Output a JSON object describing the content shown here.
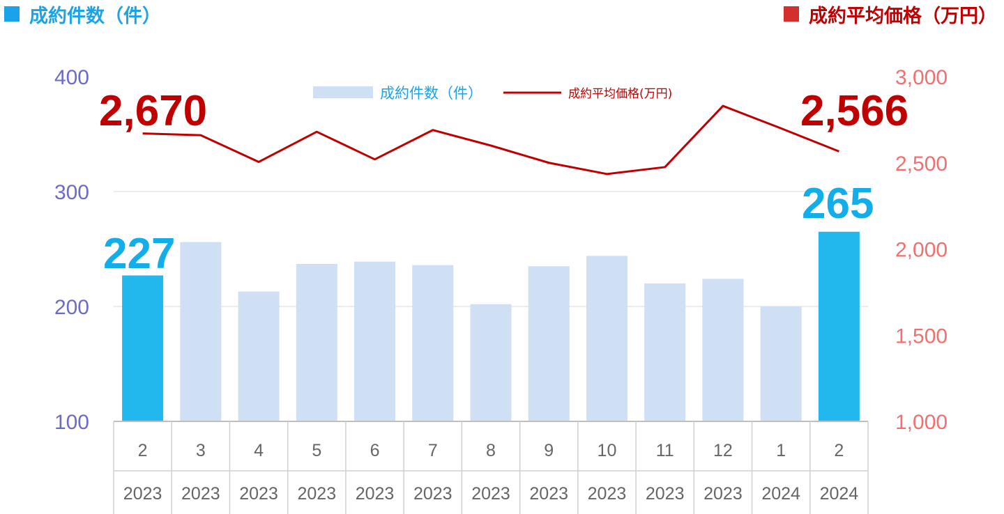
{
  "header": {
    "left_title": "成約件数（件）",
    "right_title": "成約平均価格（万円）"
  },
  "legend": {
    "bar_label": "成約件数（件）",
    "line_label": "成約平均価格(万円)"
  },
  "colors": {
    "bar_highlight": "#22b8ee",
    "bar_normal": "#cfdff4",
    "line": "#c00000",
    "left_axis_text": "#6b6bc8",
    "right_axis_text": "#f07070",
    "count_callout": "#13aee9",
    "price_callout": "#c00000"
  },
  "chart_data": {
    "type": "bar",
    "categories": [
      "2",
      "3",
      "4",
      "5",
      "6",
      "7",
      "8",
      "9",
      "10",
      "11",
      "12",
      "1",
      "2"
    ],
    "years": [
      "2023",
      "2023",
      "2023",
      "2023",
      "2023",
      "2023",
      "2023",
      "2023",
      "2023",
      "2023",
      "2023",
      "2024",
      "2024"
    ],
    "series": [
      {
        "name": "成約件数（件）",
        "type": "bar",
        "axis": "left",
        "values": [
          227,
          256,
          213,
          237,
          239,
          236,
          202,
          235,
          244,
          220,
          224,
          200,
          265
        ],
        "highlight_indices": [
          0,
          12
        ]
      },
      {
        "name": "成約平均価格(万円)",
        "type": "line",
        "axis": "right",
        "values": [
          2670,
          2660,
          2505,
          2680,
          2520,
          2690,
          2600,
          2500,
          2435,
          2475,
          2830,
          2700,
          2566
        ]
      }
    ],
    "left_axis": {
      "min": 100,
      "max": 400,
      "ticks": [
        100,
        200,
        300,
        400
      ],
      "tick_labels": [
        "100",
        "200",
        "300",
        "400"
      ]
    },
    "right_axis": {
      "min": 1000,
      "max": 3000,
      "ticks": [
        1000,
        1500,
        2000,
        2500,
        3000
      ],
      "tick_labels": [
        "1,000",
        "1,500",
        "2,000",
        "2,500",
        "3,000"
      ]
    },
    "gridlines": [
      200,
      300
    ],
    "legend_position": "top-center",
    "callouts": {
      "price_first": "2,670",
      "price_last": "2,566",
      "count_first": "227",
      "count_last": "265"
    }
  }
}
